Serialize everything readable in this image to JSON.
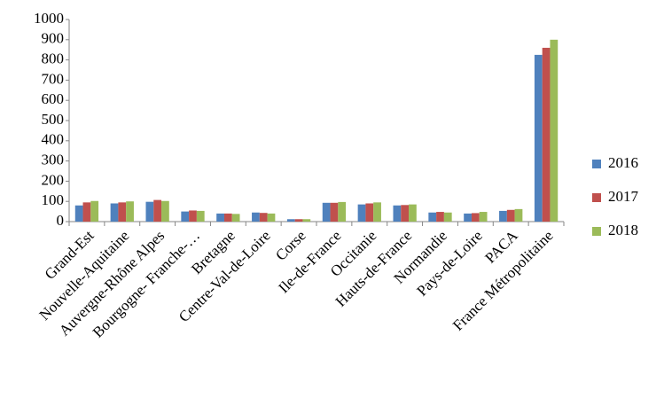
{
  "chart_data": {
    "type": "bar",
    "categories": [
      "Grand-Est",
      "Nouvelle-Aquitaine",
      "Auvergne-Rhône Alpes",
      "Bourgogne- Franche-…",
      "Bretagne",
      "Centre-Val-de-Loire",
      "Corse",
      "Ile-de-France",
      "Occitanie",
      "Hauts-de-France",
      "Normandie",
      "Pays-de-Loire",
      "PACA",
      "France Métropolitaine"
    ],
    "series": [
      {
        "name": "2016",
        "color": "#4f81bd",
        "values": [
          80,
          90,
          98,
          50,
          40,
          45,
          12,
          93,
          85,
          80,
          45,
          40,
          53,
          825
        ]
      },
      {
        "name": "2017",
        "color": "#c0504d",
        "values": [
          95,
          95,
          107,
          55,
          40,
          43,
          12,
          93,
          90,
          82,
          48,
          42,
          58,
          860
        ]
      },
      {
        "name": "2018",
        "color": "#9bbb59",
        "values": [
          102,
          100,
          102,
          53,
          38,
          40,
          12,
          97,
          95,
          85,
          45,
          48,
          62,
          900
        ]
      }
    ],
    "ylim": [
      0,
      1000
    ],
    "yticks": [
      0,
      100,
      200,
      300,
      400,
      500,
      600,
      700,
      800,
      900,
      1000
    ],
    "grid": false,
    "legend": "right"
  }
}
